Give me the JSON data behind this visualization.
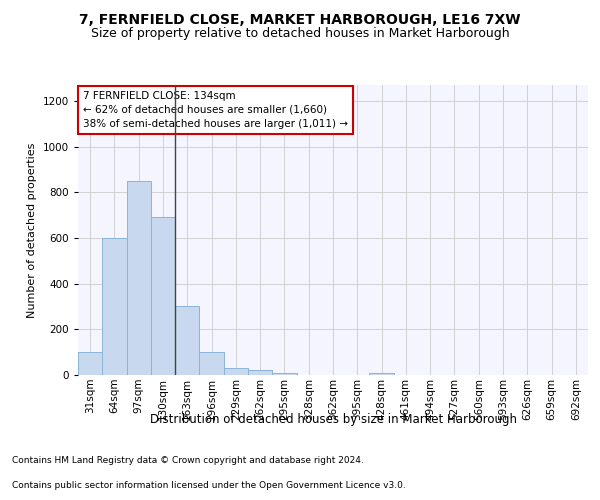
{
  "title": "7, FERNFIELD CLOSE, MARKET HARBOROUGH, LE16 7XW",
  "subtitle": "Size of property relative to detached houses in Market Harborough",
  "xlabel": "Distribution of detached houses by size in Market Harborough",
  "ylabel": "Number of detached properties",
  "footnote1": "Contains HM Land Registry data © Crown copyright and database right 2024.",
  "footnote2": "Contains public sector information licensed under the Open Government Licence v3.0.",
  "bar_labels": [
    "31sqm",
    "64sqm",
    "97sqm",
    "130sqm",
    "163sqm",
    "196sqm",
    "229sqm",
    "262sqm",
    "295sqm",
    "328sqm",
    "362sqm",
    "395sqm",
    "428sqm",
    "461sqm",
    "494sqm",
    "527sqm",
    "560sqm",
    "593sqm",
    "626sqm",
    "659sqm",
    "692sqm"
  ],
  "bar_values": [
    100,
    600,
    850,
    690,
    300,
    100,
    30,
    20,
    10,
    0,
    0,
    0,
    10,
    0,
    0,
    0,
    0,
    0,
    0,
    0,
    0
  ],
  "bar_color": "#c8d8ef",
  "bar_edgecolor": "#8ab4d8",
  "vline_index": 3,
  "vline_color": "#444444",
  "annotation_text": "7 FERNFIELD CLOSE: 134sqm\n← 62% of detached houses are smaller (1,660)\n38% of semi-detached houses are larger (1,011) →",
  "annotation_box_color": "#cc0000",
  "ylim": [
    0,
    1270
  ],
  "yticks": [
    0,
    200,
    400,
    600,
    800,
    1000,
    1200
  ],
  "grid_color": "#cccccc",
  "bg_color": "#f5f5ff",
  "title_fontsize": 10,
  "subtitle_fontsize": 9,
  "xlabel_fontsize": 8.5,
  "ylabel_fontsize": 8,
  "tick_fontsize": 7.5,
  "annot_fontsize": 7.5,
  "footnote_fontsize": 6.5
}
